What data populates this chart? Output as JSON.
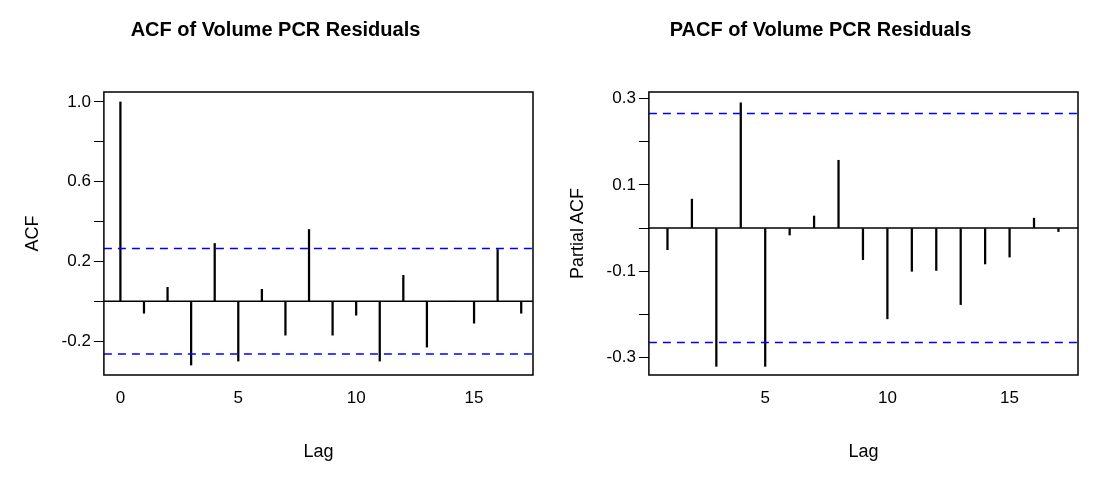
{
  "chart_data": [
    {
      "type": "bar",
      "title": "ACF of Volume PCR Residuals",
      "xlabel": "Lag",
      "ylabel": "ACF",
      "x": [
        0,
        1,
        2,
        3,
        4,
        5,
        6,
        7,
        8,
        9,
        10,
        11,
        12,
        13,
        14,
        15,
        16,
        17
      ],
      "series": [
        {
          "color": "#000000",
          "values": [
            1.0,
            -0.06,
            0.07,
            -0.32,
            0.29,
            -0.3,
            0.06,
            -0.17,
            0.36,
            -0.17,
            -0.07,
            -0.3,
            0.13,
            -0.23,
            0,
            -0.11,
            0.26,
            -0.06
          ]
        }
      ],
      "xlim": [
        -0.7,
        17.5
      ],
      "xticks": [
        0,
        5,
        10,
        15
      ],
      "ylim": [
        -0.37,
        1.05
      ],
      "yticks": [
        -0.2,
        {
          "value": 0,
          "label": null
        },
        0.2,
        {
          "value": 0.4,
          "label": null
        },
        0.6,
        {
          "value": 0.8,
          "label": null
        },
        {
          "value": 1,
          "label": "1.0"
        }
      ],
      "ref_lines": [
        {
          "axis": "y",
          "value": 0,
          "color": "#000000",
          "line_style": "solid"
        },
        {
          "axis": "y",
          "value": 0.265,
          "color": "#0000ff",
          "line_style": "dashed"
        },
        {
          "axis": "y",
          "value": -0.265,
          "color": "#0000ff",
          "line_style": "dashed"
        }
      ],
      "grid": false,
      "legend": false
    },
    {
      "type": "bar",
      "title": "PACF of Volume PCR Residuals",
      "xlabel": "Lag",
      "ylabel": "Partial ACF",
      "x": [
        1,
        2,
        3,
        4,
        5,
        6,
        7,
        8,
        9,
        10,
        11,
        12,
        13,
        14,
        15,
        16,
        17
      ],
      "series": [
        {
          "color": "#000000",
          "values": [
            -0.05,
            0.067,
            -0.32,
            0.29,
            -0.32,
            -0.016,
            0.028,
            0.157,
            -0.073,
            -0.21,
            -0.1,
            -0.098,
            -0.177,
            -0.083,
            -0.067,
            0.023,
            -0.008
          ]
        }
      ],
      "xlim": [
        0.24,
        17.8
      ],
      "xticks": [
        5,
        10,
        15
      ],
      "ylim": [
        -0.34,
        0.315
      ],
      "yticks": [
        -0.3,
        {
          "value": -0.2,
          "label": null
        },
        -0.1,
        {
          "value": 0,
          "label": null
        },
        0.1,
        {
          "value": 0.2,
          "label": null
        },
        0.3
      ],
      "ref_lines": [
        {
          "axis": "y",
          "value": 0,
          "color": "#000000",
          "line_style": "solid"
        },
        {
          "axis": "y",
          "value": 0.265,
          "color": "#0000ff",
          "line_style": "dashed"
        },
        {
          "axis": "y",
          "value": -0.265,
          "color": "#0000ff",
          "line_style": "dashed"
        }
      ],
      "grid": false,
      "legend": false
    }
  ]
}
